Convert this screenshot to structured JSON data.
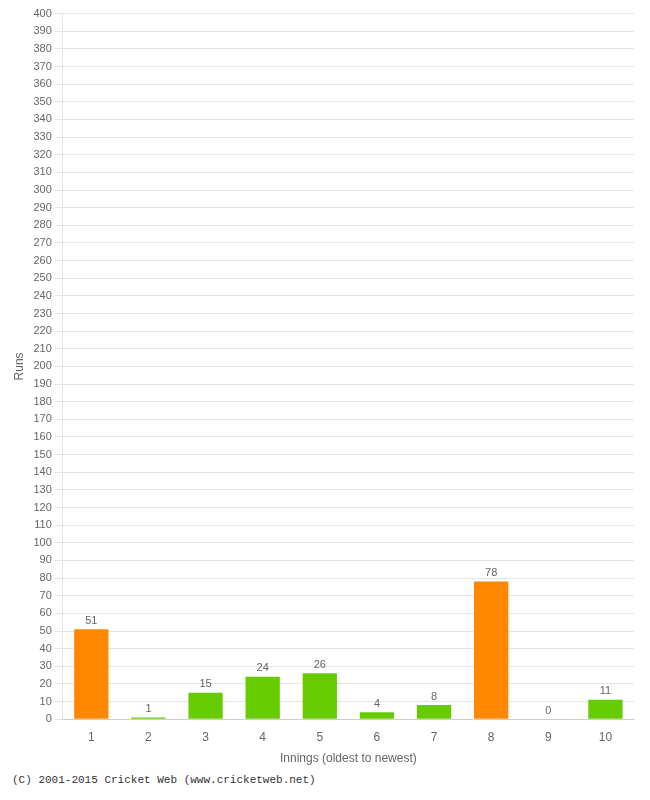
{
  "chart_data": {
    "type": "bar",
    "xlabel": "Innings (oldest to newest)",
    "ylabel": "Runs",
    "categories": [
      "1",
      "2",
      "3",
      "4",
      "5",
      "6",
      "7",
      "8",
      "9",
      "10"
    ],
    "values": [
      51,
      1,
      15,
      24,
      26,
      4,
      8,
      78,
      0,
      11
    ],
    "colors": [
      "#ff8800",
      "#66cc00",
      "#66cc00",
      "#66cc00",
      "#66cc00",
      "#66cc00",
      "#66cc00",
      "#ff8800",
      "#66cc00",
      "#66cc00"
    ],
    "ylim": [
      0,
      400
    ],
    "yticks": [
      0,
      10,
      20,
      30,
      40,
      50,
      60,
      70,
      80,
      90,
      100,
      110,
      120,
      130,
      140,
      150,
      160,
      170,
      180,
      190,
      200,
      210,
      220,
      230,
      240,
      250,
      260,
      270,
      280,
      290,
      300,
      310,
      320,
      330,
      340,
      350,
      360,
      370,
      380,
      390,
      400
    ],
    "grid": true,
    "data_labels": true,
    "footer": "(C) 2001-2015 Cricket Web (www.cricketweb.net)"
  }
}
